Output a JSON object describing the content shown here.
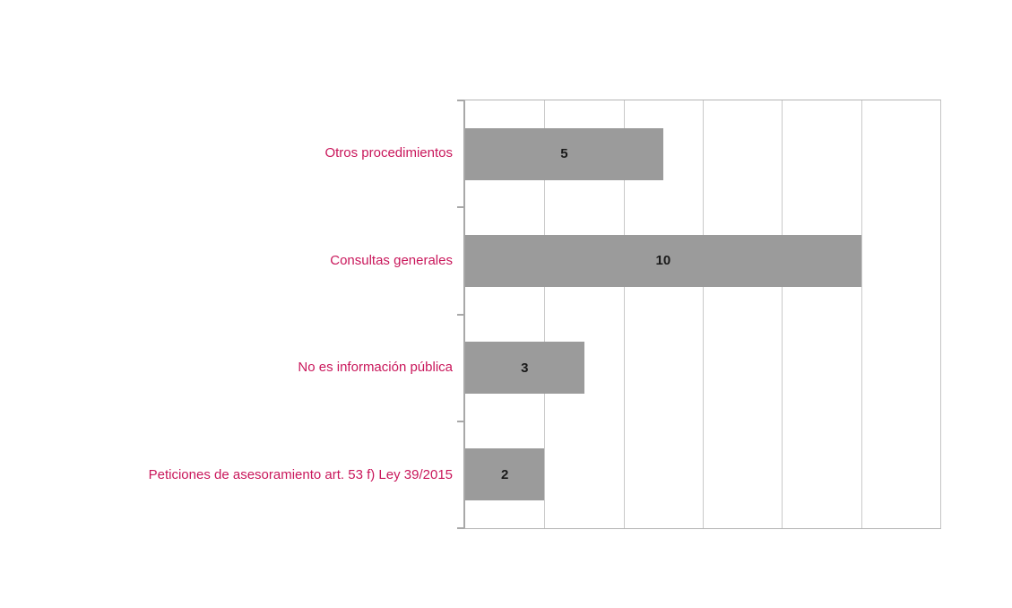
{
  "chart_data": {
    "type": "bar",
    "orientation": "horizontal",
    "title": "",
    "xlabel": "",
    "ylabel": "",
    "categories": [
      "Otros procedimientos",
      "Consultas generales",
      "No es información pública",
      "Peticiones de asesoramiento art. 53 f) Ley 39/2015"
    ],
    "values": [
      5,
      10,
      3,
      2
    ],
    "value_labels": [
      "5",
      "10",
      "3",
      "2"
    ],
    "xlim": [
      0,
      12
    ],
    "grid_step": 2,
    "grid": true,
    "legend": false,
    "x_tick_labels_visible": false,
    "colors": {
      "bar_fill": "#9b9b9b",
      "category_label": "#c9175b",
      "value_label": "#1a1a1a",
      "gridline": "#c9c9c9",
      "axis_line": "#a8a8a8",
      "background": "#ffffff"
    }
  }
}
